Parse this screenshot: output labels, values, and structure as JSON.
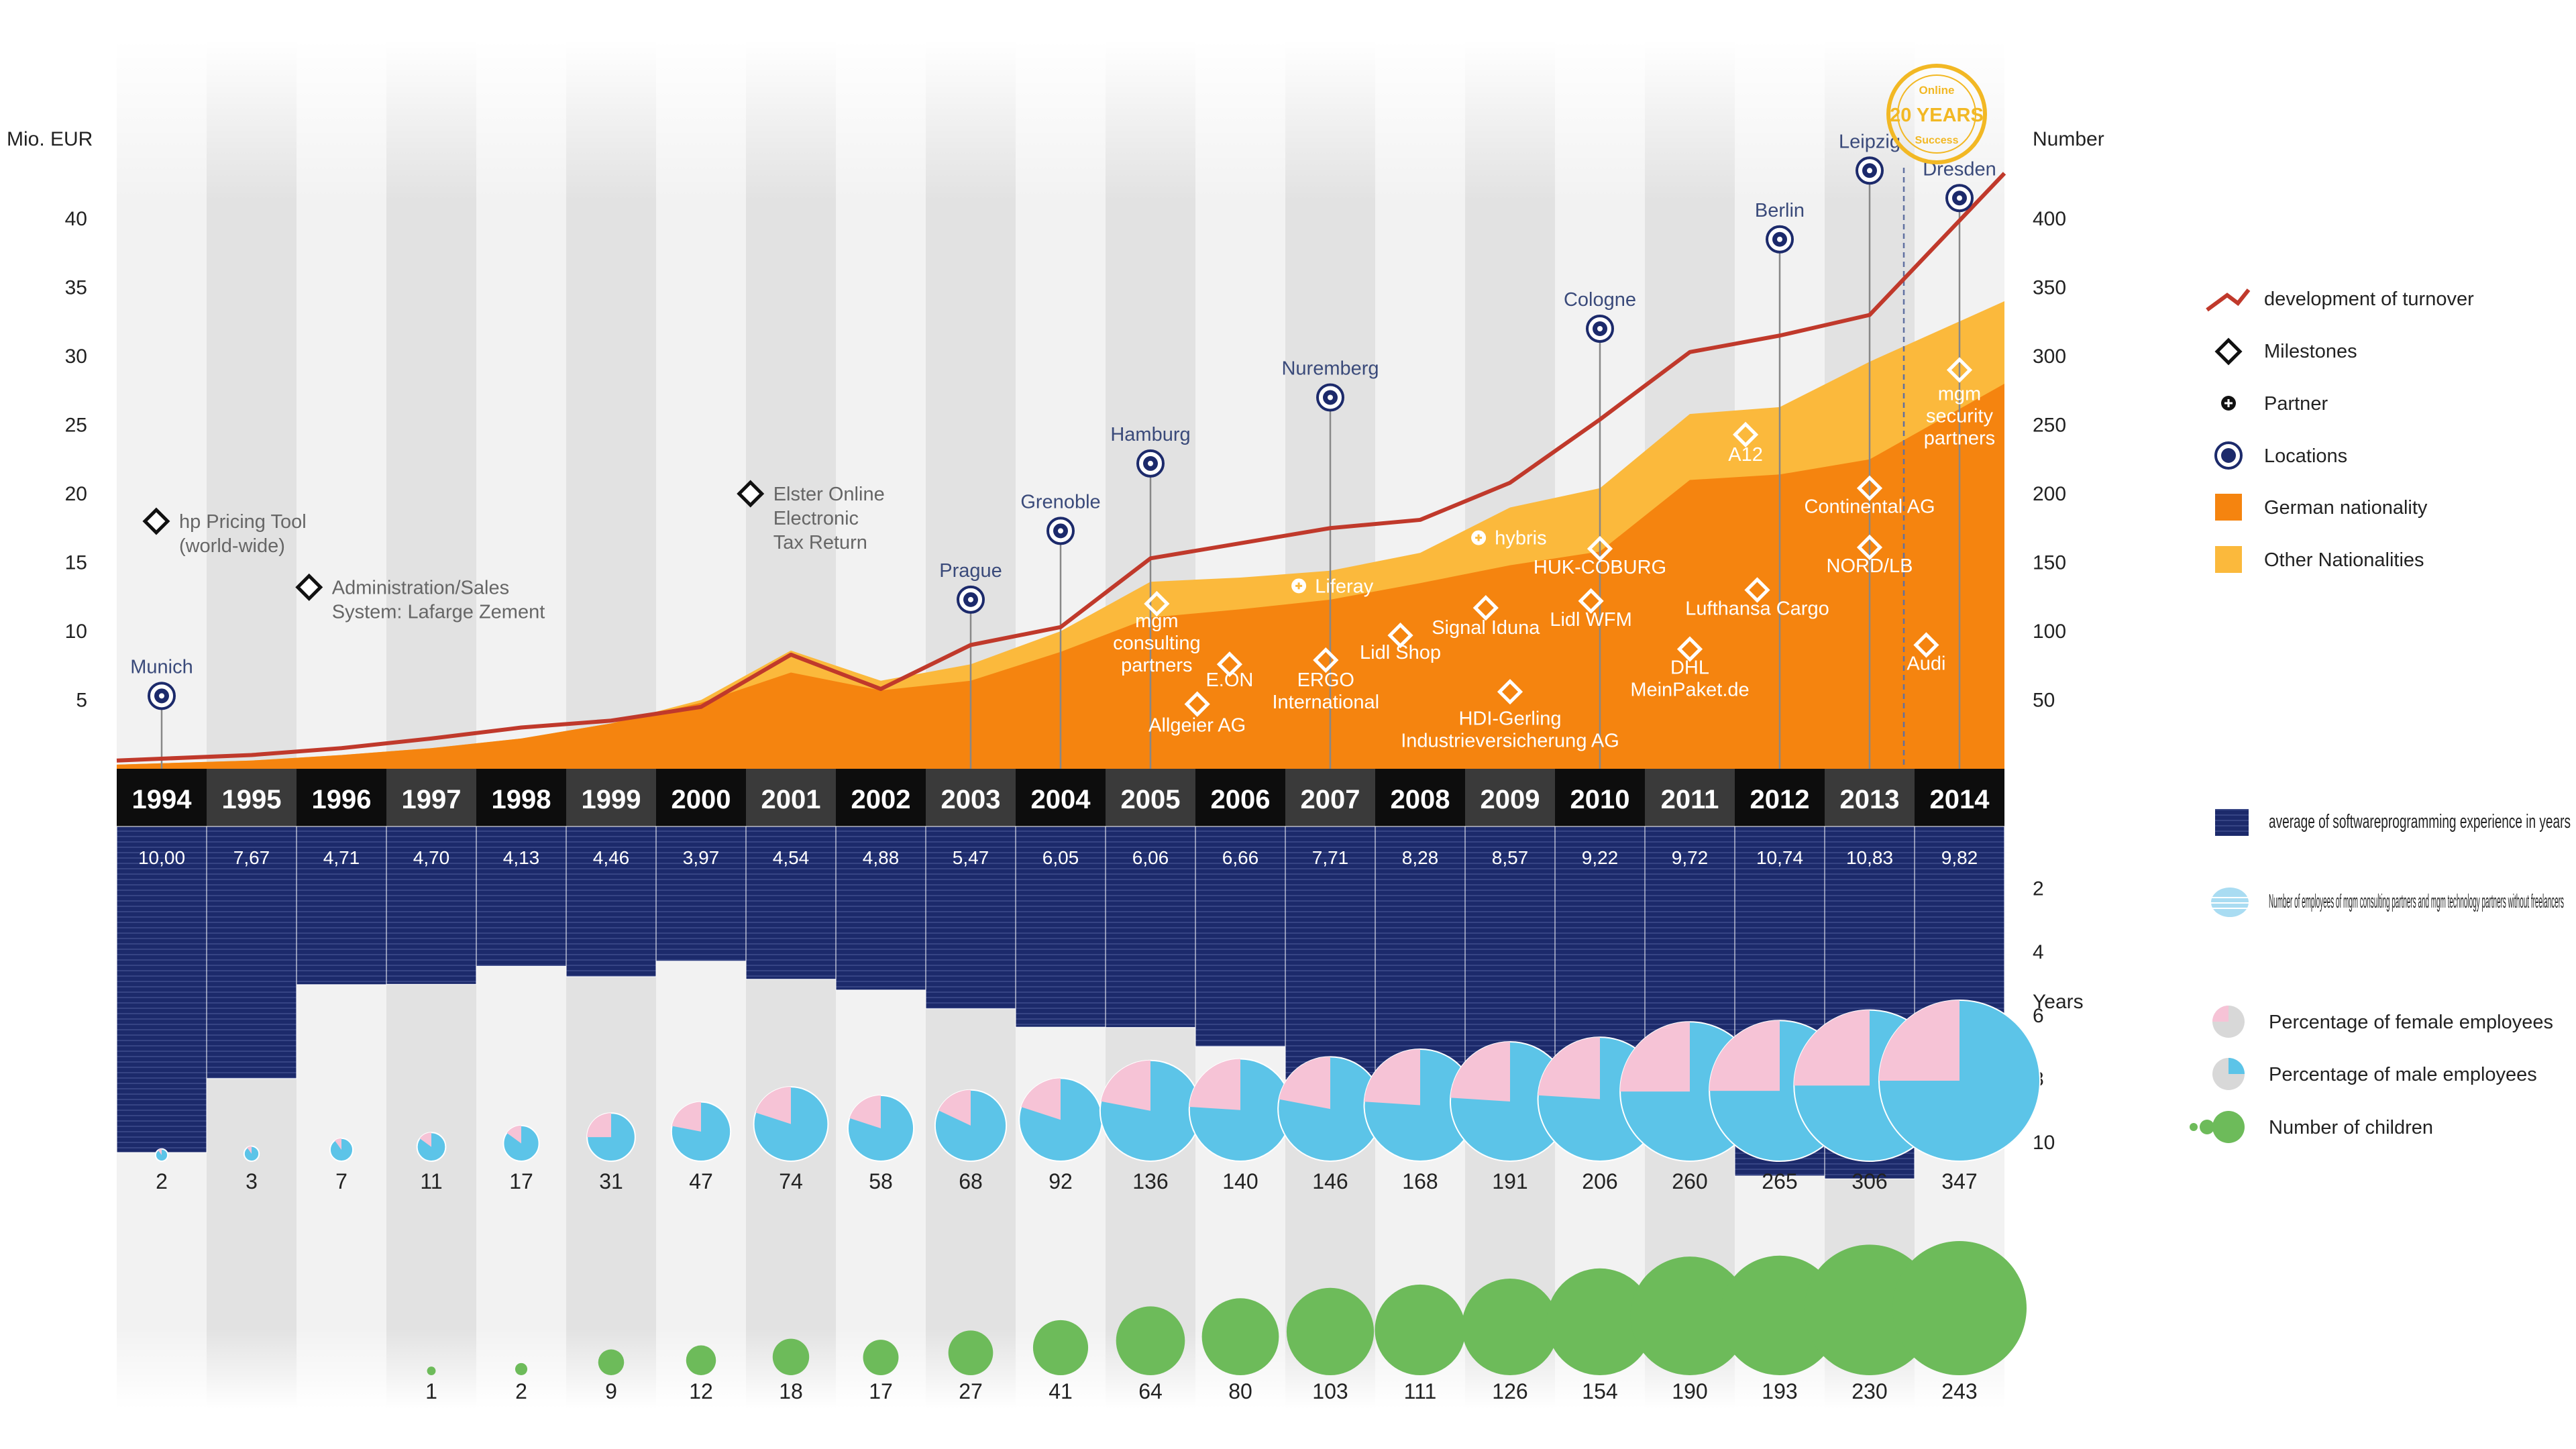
{
  "chart_data": {
    "type": "area",
    "years": [
      "1994",
      "1995",
      "1996",
      "1997",
      "1998",
      "1999",
      "2000",
      "2001",
      "2002",
      "2003",
      "2004",
      "2005",
      "2006",
      "2007",
      "2008",
      "2009",
      "2010",
      "2011",
      "2012",
      "2013",
      "2014"
    ],
    "axes": {
      "left_title": "Mio. EUR",
      "left_ticks": [
        "5",
        "10",
        "15",
        "20",
        "25",
        "30",
        "35",
        "40"
      ],
      "left_values": [
        5,
        10,
        15,
        20,
        25,
        30,
        35,
        40
      ],
      "right_title": "Number",
      "right_ticks": [
        "50",
        "100",
        "150",
        "200",
        "250",
        "300",
        "350",
        "400"
      ],
      "right_values": [
        50,
        100,
        150,
        200,
        250,
        300,
        350,
        400
      ],
      "experience_ticks": [
        "2",
        "4",
        "6",
        "8",
        "10"
      ],
      "experience_values": [
        2,
        4,
        6,
        8,
        10
      ],
      "experience_unit": "Years"
    },
    "turnover_mio_eur": [
      0.6,
      1.0,
      1.5,
      2.2,
      3.0,
      3.5,
      4.5,
      8.3,
      5.8,
      9.0,
      10.3,
      15.3,
      16.4,
      17.5,
      18.1,
      20.8,
      25.4,
      30.3,
      31.5,
      33.0,
      43.3
    ],
    "employees_total": [
      3,
      6,
      10,
      15,
      22,
      33,
      50,
      86,
      64,
      76,
      100,
      136,
      139,
      144,
      157,
      190,
      204,
      258,
      263,
      296,
      340
    ],
    "employees_german": [
      3,
      6,
      10,
      15,
      22,
      33,
      48,
      70,
      57,
      64,
      85,
      110,
      116,
      123,
      135,
      148,
      158,
      210,
      214,
      225,
      280
    ],
    "average_experience_years": [
      10.0,
      7.67,
      4.71,
      4.7,
      4.13,
      4.46,
      3.97,
      4.54,
      4.88,
      5.47,
      6.05,
      6.06,
      6.66,
      7.71,
      8.28,
      8.57,
      9.22,
      9.72,
      10.74,
      10.83,
      9.82
    ],
    "average_experience_labels": [
      "10,00",
      "7,67",
      "4,71",
      "4,70",
      "4,13",
      "4,46",
      "3,97",
      "4,54",
      "4,88",
      "5,47",
      "6,05",
      "6,06",
      "6,66",
      "7,71",
      "8,28",
      "8,57",
      "9,22",
      "9,72",
      "10,74",
      "10,83",
      "9,82"
    ],
    "employees_count_labels": [
      "2",
      "3",
      "7",
      "11",
      "17",
      "31",
      "47",
      "74",
      "58",
      "68",
      "92",
      "136",
      "140",
      "146",
      "168",
      "191",
      "206",
      "260",
      "265",
      "306",
      "347"
    ],
    "employees_count_values": [
      2,
      3,
      7,
      11,
      17,
      31,
      47,
      74,
      58,
      68,
      92,
      136,
      140,
      146,
      168,
      191,
      206,
      260,
      265,
      306,
      347
    ],
    "female_share": [
      0.1,
      0.1,
      0.1,
      0.15,
      0.15,
      0.25,
      0.22,
      0.2,
      0.2,
      0.18,
      0.2,
      0.22,
      0.24,
      0.22,
      0.24,
      0.24,
      0.24,
      0.25,
      0.25,
      0.25,
      0.25
    ],
    "children_labels": [
      "",
      "",
      "",
      "1",
      "2",
      "9",
      "12",
      "18",
      "17",
      "27",
      "41",
      "64",
      "80",
      "103",
      "111",
      "126",
      "154",
      "190",
      "193",
      "230",
      "243"
    ],
    "children_values": [
      0,
      0,
      0,
      1,
      2,
      9,
      12,
      18,
      17,
      27,
      41,
      64,
      80,
      103,
      111,
      126,
      154,
      190,
      193,
      230,
      243
    ],
    "locations": [
      {
        "label": "Munich",
        "year": "1994",
        "y": 5.3,
        "leader": true
      },
      {
        "label": "Prague",
        "year": "2003",
        "y": 12.3,
        "leader": true
      },
      {
        "label": "Grenoble",
        "year": "2004",
        "y": 17.3,
        "leader": true
      },
      {
        "label": "Hamburg",
        "year": "2005",
        "y": 22.2,
        "leader": true
      },
      {
        "label": "Nuremberg",
        "year": "2007",
        "y": 27.0,
        "leader": true
      },
      {
        "label": "Cologne",
        "year": "2010",
        "y": 32.0,
        "leader": true
      },
      {
        "label": "Berlin",
        "year": "2012",
        "y": 38.5,
        "leader": true
      },
      {
        "label": "Leipzig",
        "year": "2013",
        "y": 43.5,
        "leader": true
      },
      {
        "label": "Dresden",
        "year": "2014",
        "y": 41.5,
        "leader": true
      }
    ],
    "milestones": [
      {
        "line1": "hp Pricing Tool",
        "line2": "(world-wide)",
        "line3": "",
        "year": "1994",
        "dx": 0.44,
        "y": 18.0
      },
      {
        "line1": "Administration/Sales",
        "line2": "System: Lafarge Zement",
        "line3": "",
        "year": "1996",
        "dx": 0.14,
        "y": 13.2
      },
      {
        "line1": "Elster Online",
        "line2": "Electronic",
        "line3": "Tax Return",
        "year": "2001",
        "dx": 0.05,
        "y": 20.0
      }
    ],
    "clients": [
      {
        "label": "mgm consulting partners",
        "lines": [
          "mgm",
          "consulting",
          "partners"
        ],
        "year": "2005",
        "dx": 0.07,
        "y": 12.0,
        "text_y": 10.3,
        "mark": "diamond"
      },
      {
        "label": "E.ON",
        "lines": [
          "E.ON"
        ],
        "year": "2006",
        "dx": -0.12,
        "y": 7.6,
        "text_y": 6.0,
        "mark": "diamond"
      },
      {
        "label": "Allgeier AG",
        "lines": [
          "Allgeier AG"
        ],
        "year": "2005",
        "dx": 0.52,
        "y": 4.7,
        "text_y": 2.7,
        "mark": "diamond"
      },
      {
        "label": "Liferay",
        "lines": [
          "Liferay"
        ],
        "year": "2007",
        "dx": -0.35,
        "y": 13.3,
        "text_y": 13.3,
        "text_dx": 0.18,
        "mark": "partner",
        "anchor": "start"
      },
      {
        "label": "ERGO International",
        "lines": [
          "ERGO",
          "International"
        ],
        "year": "2007",
        "dx": -0.05,
        "y": 7.9,
        "text_y": 6.0,
        "mark": "diamond"
      },
      {
        "label": "Lidl Shop",
        "lines": [
          "Lidl Shop"
        ],
        "year": "2008",
        "dx": -0.22,
        "y": 9.7,
        "text_y": 8.0,
        "mark": "diamond"
      },
      {
        "label": "Signal Iduna",
        "lines": [
          "Signal Iduna"
        ],
        "year": "2009",
        "dx": -0.27,
        "y": 11.7,
        "text_y": 9.8,
        "mark": "diamond"
      },
      {
        "label": "hybris",
        "lines": [
          "hybris"
        ],
        "year": "2009",
        "dx": -0.35,
        "y": 16.8,
        "text_y": 16.8,
        "text_dx": 0.18,
        "mark": "partner",
        "anchor": "start"
      },
      {
        "label": "HDI-Gerling Industrieversicherung AG",
        "lines": [
          "HDI-Gerling",
          "Industrieversicherung AG"
        ],
        "year": "2009",
        "dx": 0.0,
        "y": 5.6,
        "text_y": 3.2,
        "mark": "diamond"
      },
      {
        "label": "HUK-COBURG",
        "lines": [
          "HUK-COBURG"
        ],
        "year": "2010",
        "dx": 0.0,
        "y": 16.0,
        "text_y": 14.2,
        "mark": "diamond"
      },
      {
        "label": "Lidl WFM",
        "lines": [
          "Lidl WFM"
        ],
        "year": "2010",
        "dx": -0.1,
        "y": 12.2,
        "text_y": 10.4,
        "mark": "diamond"
      },
      {
        "label": "DHL MeinPaket.de",
        "lines": [
          "DHL",
          "MeinPaket.de"
        ],
        "year": "2011",
        "dx": 0.0,
        "y": 8.7,
        "text_y": 6.9,
        "mark": "diamond"
      },
      {
        "label": "A12",
        "lines": [
          "A12"
        ],
        "year": "2012",
        "dx": -0.38,
        "y": 24.3,
        "text_y": 22.4,
        "mark": "diamond"
      },
      {
        "label": "Lufthansa Cargo",
        "lines": [
          "Lufthansa Cargo"
        ],
        "year": "2012",
        "dx": -0.25,
        "y": 13.0,
        "text_y": 11.2,
        "mark": "diamond"
      },
      {
        "label": "Continental AG",
        "lines": [
          "Continental AG"
        ],
        "year": "2013",
        "dx": 0.0,
        "y": 20.4,
        "text_y": 18.6,
        "mark": "diamond"
      },
      {
        "label": "NORD/LB",
        "lines": [
          "NORD/LB"
        ],
        "year": "2013",
        "dx": 0.0,
        "y": 16.1,
        "text_y": 14.3,
        "mark": "diamond"
      },
      {
        "label": "Audi",
        "lines": [
          "Audi"
        ],
        "year": "2014",
        "dx": -0.37,
        "y": 9.0,
        "text_y": 7.2,
        "mark": "diamond"
      },
      {
        "label": "mgm security partners",
        "lines": [
          "mgm",
          "security",
          "partners"
        ],
        "year": "2014",
        "dx": 0.0,
        "y": 29.0,
        "text_y": 26.8,
        "mark": "diamond"
      }
    ],
    "stamp": {
      "top": "Online",
      "main": "20 YEARS",
      "bottom": "Success"
    },
    "colors": {
      "turnover": "#c0392b",
      "german": "#f5840f",
      "other": "#fbb93c",
      "year_bar": "#1a1a1a",
      "experience": "#1c2a6b",
      "male": "#5cc4e8",
      "female": "#f6c3d6",
      "children": "#6dbb5a",
      "band_light": "#f2f2f2",
      "band_dark": "#e2e2e2",
      "location_marker": "#1c2a6b"
    },
    "legend": [
      {
        "key": "turnover",
        "label": "development of turnover"
      },
      {
        "key": "milestones",
        "label": "Milestones"
      },
      {
        "key": "partner",
        "label": "Partner"
      },
      {
        "key": "locations",
        "label": "Locations"
      },
      {
        "key": "german",
        "label": "German nationality"
      },
      {
        "key": "other",
        "label": "Other Nationalities"
      },
      {
        "key": "experience",
        "label": "average of softwareprogramming experience in years"
      },
      {
        "key": "employees",
        "label": "Number of employees of mgm consulting partners and mgm technology partners without freelancers"
      },
      {
        "key": "female",
        "label": "Percentage of female employees"
      },
      {
        "key": "male",
        "label": "Percentage of male employees"
      },
      {
        "key": "children",
        "label": "Number of children"
      }
    ]
  }
}
